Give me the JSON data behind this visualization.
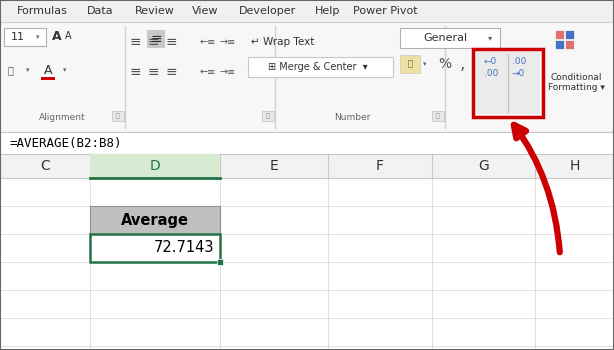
{
  "menu_items": [
    "Formulas",
    "Data",
    "Review",
    "View",
    "Developer",
    "Help",
    "Power Pivot"
  ],
  "formula_bar_text": "=AVERAGE(B2:B8)",
  "col_headers": [
    "C",
    "D",
    "E",
    "F",
    "G",
    "H"
  ],
  "cell_label": "Average",
  "cell_value": "72.7143",
  "red_color": "#cc0000",
  "green_border": "#217346",
  "green_header_bg": "#c6e0b4",
  "col_header_bg": "#d9d9d9",
  "ribbon_bg": "#f2f2f2",
  "white": "#ffffff",
  "grid_color": "#d4d4d4",
  "text_dark": "#1f1f1f",
  "text_blue": "#4472c4",
  "avg_cell_bg": "#bfbfbf",
  "dec_btn_bg": "#e8e8e8",
  "number_section_label": "Number",
  "alignment_section_label": "Alignment"
}
